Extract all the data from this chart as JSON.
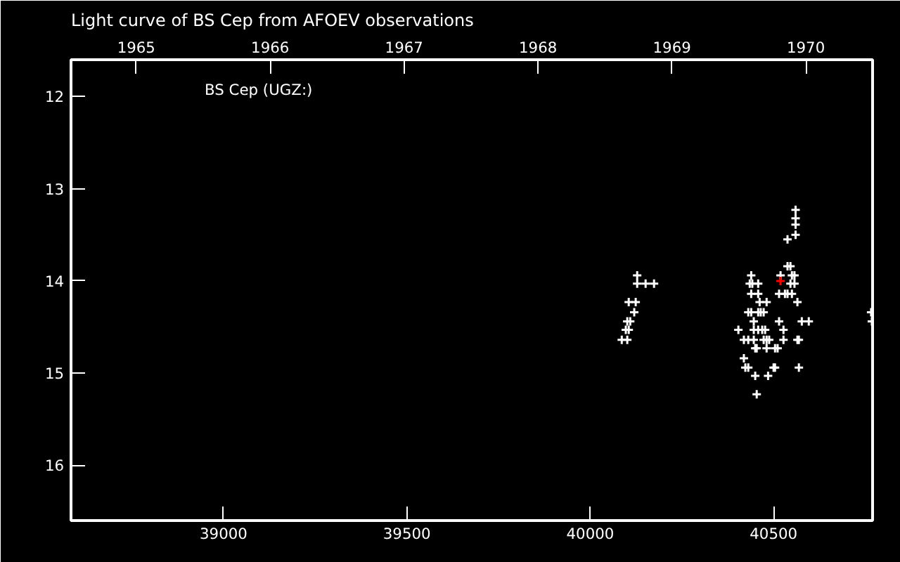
{
  "chart_data": {
    "type": "scatter",
    "title": "Light curve of BS Cep from AFOEV observations",
    "annotations": [
      "BS Cep (UGZ:)"
    ],
    "xlim": [
      38584,
      40770
    ],
    "xticks": [
      39000,
      39500,
      40000,
      40500
    ],
    "x2lim": [
      1964.513,
      1970.498
    ],
    "x2ticks": [
      1965,
      1966,
      1967,
      1968,
      1969,
      1970
    ],
    "ylim": [
      16.6,
      11.6
    ],
    "yticks": [
      12,
      13,
      14,
      15,
      16
    ],
    "grid": false,
    "marker": "cross",
    "series": [
      {
        "color": "#ffffff",
        "x": [
          40128,
          40128,
          40151,
          40174,
          40105,
          40124,
          40120,
          40101,
          40109,
          40097,
          40105,
          40086,
          40101,
          40560,
          40560,
          40560,
          40560,
          40538,
          40538,
          40546,
          40439,
          40519,
          40550,
          40557,
          40435,
          40442,
          40458,
          40546,
          40557,
          40439,
          40458,
          40515,
          40531,
          40538,
          40550,
          40462,
          40481,
          40565,
          40431,
          40439,
          40458,
          40465,
          40473,
          40446,
          40515,
          40577,
          40596,
          40404,
          40446,
          40458,
          40469,
          40477,
          40527,
          40419,
          40431,
          40446,
          40473,
          40481,
          40488,
          40527,
          40565,
          40569,
          40450,
          40454,
          40481,
          40504,
          40511,
          40419,
          40423,
          40431,
          40500,
          40504,
          40569,
          40450,
          40485,
          40454,
          40766,
          40768
        ],
        "values": [
          13.94,
          14.03,
          14.03,
          14.03,
          14.23,
          14.23,
          14.34,
          14.44,
          14.44,
          14.53,
          14.53,
          14.64,
          14.64,
          13.23,
          13.32,
          13.39,
          13.5,
          13.55,
          13.84,
          13.84,
          13.94,
          13.94,
          13.94,
          13.94,
          14.03,
          14.03,
          14.03,
          14.03,
          14.03,
          14.14,
          14.14,
          14.14,
          14.14,
          14.14,
          14.14,
          14.23,
          14.23,
          14.23,
          14.34,
          14.34,
          14.34,
          14.34,
          14.34,
          14.44,
          14.44,
          14.44,
          14.44,
          14.53,
          14.53,
          14.53,
          14.53,
          14.53,
          14.53,
          14.64,
          14.64,
          14.64,
          14.64,
          14.64,
          14.64,
          14.64,
          14.64,
          14.64,
          14.73,
          14.73,
          14.73,
          14.73,
          14.73,
          14.84,
          14.94,
          14.94,
          14.94,
          14.94,
          14.94,
          15.03,
          15.03,
          15.23,
          14.34,
          14.44
        ]
      },
      {
        "color": "#ff0000",
        "x": [
          40519
        ],
        "values": [
          14.0
        ]
      }
    ]
  }
}
